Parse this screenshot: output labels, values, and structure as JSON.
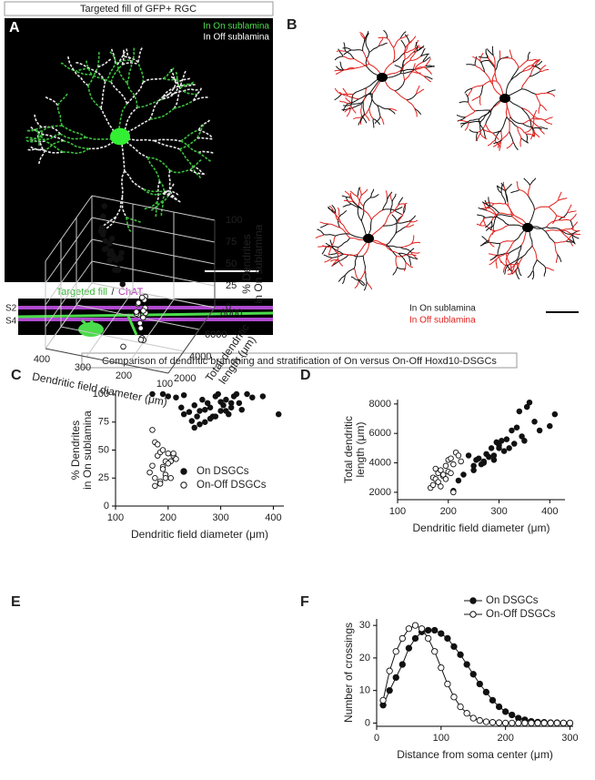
{
  "panel_a": {
    "label": "A",
    "title": "Targeted fill of GFP+ RGC",
    "legend": [
      "In On sublamina",
      "In Off sublamina"
    ],
    "strip": {
      "fill": "Targeted fill",
      "sep": "/",
      "chat": "ChAT",
      "s2": "S2",
      "s4": "S4"
    }
  },
  "panel_b": {
    "label": "B",
    "legend": [
      "In On sublamina",
      "In Off sublamina"
    ]
  },
  "section_title": "Comparison of dendritic branching and stratification of On versus On-Off Hoxd10-DSGCs",
  "chart_data": [
    {
      "type": "scatter",
      "panel_label": "C",
      "xlabel": "Dendritic field diameter (μm)",
      "ylabel": [
        "% Dendrites",
        "in On sublamina"
      ],
      "xlim": [
        100,
        420
      ],
      "ylim": [
        0,
        100
      ],
      "xticks": [
        100,
        200,
        300,
        400
      ],
      "yticks": [
        0,
        25,
        50,
        75,
        100
      ],
      "legend_position": "lower right",
      "series": [
        {
          "name": "On DSGCs",
          "color": "#111111",
          "marker": "filled",
          "x": [
            170,
            190,
            200,
            215,
            225,
            230,
            240,
            245,
            250,
            255,
            260,
            265,
            270,
            275,
            280,
            285,
            290,
            295,
            300,
            305,
            310,
            315,
            320,
            325,
            330,
            335,
            340,
            350,
            360,
            380,
            410,
            250,
            270,
            290,
            300,
            310,
            260,
            280,
            320,
            230
          ],
          "values": [
            100,
            100,
            98,
            97,
            88,
            82,
            84,
            76,
            90,
            80,
            85,
            95,
            86,
            92,
            88,
            80,
            98,
            100,
            85,
            90,
            95,
            82,
            88,
            98,
            100,
            92,
            86,
            100,
            97,
            98,
            82,
            70,
            75,
            80,
            93,
            85,
            73,
            78,
            92,
            99
          ]
        },
        {
          "name": "On-Off DSGCs",
          "color": "#111111",
          "marker": "open",
          "x": [
            165,
            170,
            175,
            180,
            185,
            190,
            195,
            200,
            205,
            210,
            215,
            175,
            185,
            195,
            205,
            180,
            190,
            200,
            170,
            185,
            195,
            210,
            175,
            190
          ],
          "values": [
            30,
            68,
            57,
            45,
            48,
            35,
            40,
            47,
            25,
            45,
            42,
            25,
            22,
            28,
            40,
            55,
            50,
            38,
            36,
            20,
            25,
            47,
            18,
            33
          ]
        }
      ]
    },
    {
      "type": "scatter",
      "panel_label": "D",
      "xlabel": "Dendritic field diameter (μm)",
      "ylabel": [
        "Total dendritic",
        "length  (μm)"
      ],
      "xlim": [
        100,
        430
      ],
      "ylim": [
        1500,
        8300
      ],
      "xticks": [
        100,
        200,
        300,
        400
      ],
      "yticks": [
        2000,
        4000,
        6000,
        8000
      ],
      "series": [
        {
          "name": "On DSGCs",
          "color": "#111111",
          "marker": "filled",
          "x": [
            210,
            220,
            230,
            240,
            250,
            255,
            260,
            265,
            270,
            275,
            280,
            285,
            290,
            295,
            300,
            305,
            310,
            315,
            320,
            325,
            330,
            335,
            340,
            345,
            350,
            355,
            360,
            370,
            380,
            400,
            410,
            250,
            270,
            290,
            300
          ],
          "values": [
            2100,
            2800,
            3200,
            4500,
            3500,
            4200,
            4300,
            3900,
            4100,
            4600,
            4400,
            5000,
            4200,
            5400,
            5200,
            5500,
            4800,
            5600,
            5000,
            6200,
            5300,
            6400,
            7500,
            5800,
            5500,
            7800,
            8100,
            6800,
            6200,
            6500,
            7300,
            3800,
            4000,
            4500,
            5000
          ]
        },
        {
          "name": "On-Off DSGCs",
          "color": "#111111",
          "marker": "open",
          "x": [
            165,
            170,
            175,
            180,
            185,
            190,
            195,
            200,
            205,
            210,
            215,
            220,
            170,
            180,
            190,
            200,
            210,
            175,
            185,
            195,
            205,
            225
          ],
          "values": [
            2300,
            3000,
            2900,
            3300,
            3500,
            3100,
            3800,
            4200,
            4300,
            3900,
            4700,
            4500,
            2500,
            2700,
            3200,
            3400,
            2000,
            3600,
            2400,
            2900,
            3300,
            4100
          ]
        }
      ]
    },
    {
      "type": "scatter3d",
      "panel_label": "E",
      "xlabel": "Dendritic field diameter (μm)",
      "ylabel": [
        "Total dendritic",
        "length (μm)"
      ],
      "zlabel": [
        "% Dendrites",
        "in On sublamina"
      ],
      "xlim": [
        100,
        400
      ],
      "ylim": [
        2000,
        8000
      ],
      "zlim": [
        0,
        100
      ],
      "xticks": [
        100,
        200,
        300,
        400
      ],
      "yticks": [
        2000,
        4000,
        6000,
        8000
      ],
      "zticks": [
        0,
        25,
        50,
        75,
        100
      ],
      "grid": true,
      "series": [
        {
          "name": "On DSGCs",
          "color": "#111111",
          "marker": "filled",
          "x": [
            250,
            260,
            270,
            280,
            290,
            300,
            310,
            320,
            330,
            340,
            260,
            280,
            300,
            320,
            350,
            270,
            290,
            310,
            240,
            360,
            280,
            300,
            330,
            250,
            270
          ],
          "y": [
            3800,
            4200,
            4300,
            4400,
            4500,
            5000,
            4900,
            5200,
            5600,
            6000,
            4000,
            4600,
            5300,
            5500,
            6800,
            4100,
            4700,
            5100,
            3500,
            7500,
            4300,
            5000,
            5800,
            3900,
            4500
          ],
          "z": [
            95,
            90,
            85,
            88,
            80,
            92,
            86,
            98,
            100,
            90,
            78,
            82,
            94,
            87,
            96,
            76,
            88,
            84,
            70,
            98,
            90,
            80,
            93,
            100,
            72
          ]
        },
        {
          "name": "On-Off DSGCs",
          "color": "#111111",
          "marker": "open",
          "x": [
            170,
            175,
            180,
            185,
            190,
            195,
            200,
            205,
            210,
            215,
            170,
            180,
            190,
            200,
            210,
            185,
            195,
            220
          ],
          "y": [
            2300,
            3000,
            3300,
            3500,
            3100,
            3800,
            4200,
            4300,
            3900,
            4700,
            2500,
            2700,
            3200,
            3400,
            2000,
            2400,
            2900,
            4500
          ],
          "z": [
            30,
            68,
            45,
            48,
            35,
            40,
            47,
            25,
            45,
            42,
            25,
            22,
            28,
            40,
            20,
            55,
            50,
            38
          ]
        }
      ]
    },
    {
      "type": "line",
      "panel_label": "F",
      "xlabel": "Distance from soma center (μm)",
      "ylabel": [
        "Number of crossings"
      ],
      "xlim": [
        0,
        305
      ],
      "ylim": [
        -1,
        32
      ],
      "xticks": [
        0,
        100,
        200,
        300
      ],
      "yticks": [
        0,
        10,
        20,
        30
      ],
      "legend_position": "upper right",
      "x": [
        10,
        20,
        30,
        40,
        50,
        60,
        70,
        80,
        90,
        100,
        110,
        120,
        130,
        140,
        150,
        160,
        170,
        180,
        190,
        200,
        210,
        220,
        230,
        240,
        250,
        260,
        270,
        280,
        290,
        300
      ],
      "series": [
        {
          "name": "On DSGCs",
          "color": "#111111",
          "marker": "filled",
          "values": [
            5.5,
            10,
            14,
            18,
            23,
            26,
            28,
            28.5,
            28.5,
            27.5,
            26,
            23.5,
            21,
            18,
            15,
            12,
            9.5,
            7,
            5,
            3.5,
            2.5,
            1.5,
            1,
            0.5,
            0.3,
            0.2,
            0.1,
            0.1,
            0,
            0
          ]
        },
        {
          "name": "On-Off DSGCs",
          "color": "#111111",
          "marker": "open",
          "values": [
            7,
            16,
            22,
            26,
            29,
            30,
            29,
            26,
            22,
            17,
            12,
            8,
            5,
            3,
            1.5,
            0.8,
            0.4,
            0.2,
            0.1,
            0,
            0,
            0,
            0,
            0,
            0,
            0,
            0,
            0,
            0,
            0
          ]
        }
      ]
    }
  ]
}
